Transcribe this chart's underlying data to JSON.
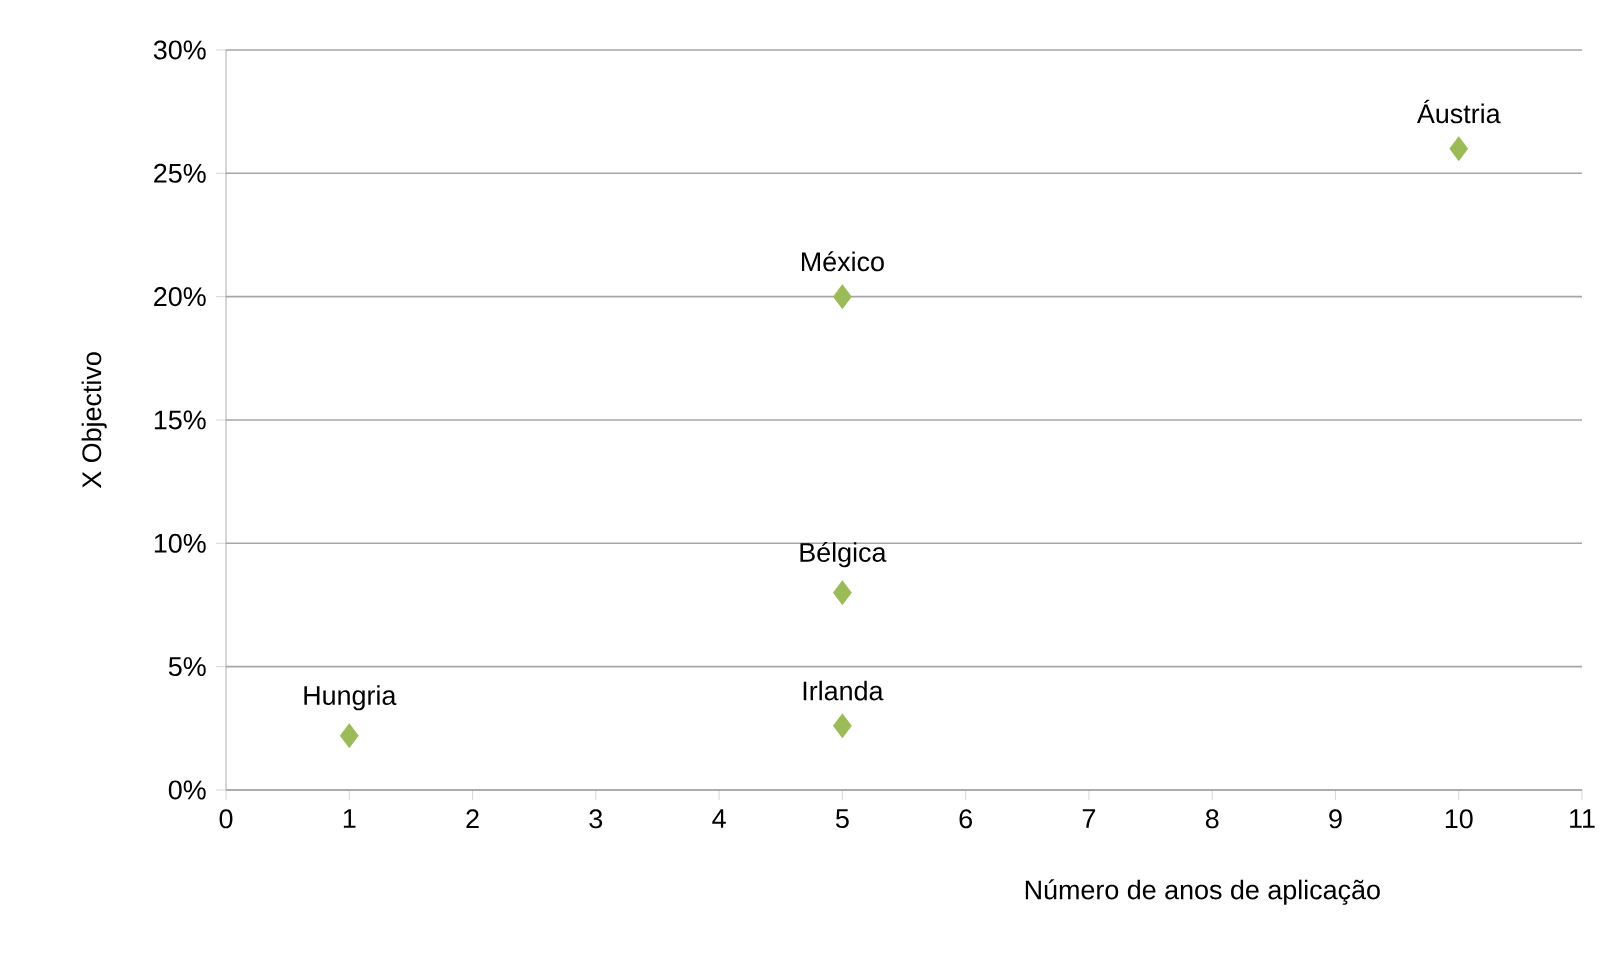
{
  "chart_data": {
    "type": "scatter",
    "xlabel": "Número de anos de aplicação",
    "ylabel": "X Objectivo",
    "x": [
      1,
      5,
      5,
      5,
      10
    ],
    "series": [
      {
        "color": "#9bbb59",
        "values": [
          2.2,
          2.6,
          8,
          20,
          26
        ]
      }
    ],
    "xlim": [
      0,
      11
    ],
    "xticks": [
      0,
      1,
      2,
      3,
      4,
      5,
      6,
      7,
      8,
      9,
      10,
      11
    ],
    "ylim": [
      0,
      30
    ],
    "yticks": [
      {
        "value": 0,
        "label": "0%"
      },
      {
        "value": 5,
        "label": "5%"
      },
      {
        "value": 10,
        "label": "10%"
      },
      {
        "value": 15,
        "label": "15%"
      },
      {
        "value": 20,
        "label": "20%"
      },
      {
        "value": 25,
        "label": "25%"
      },
      {
        "value": 30,
        "label": "30%"
      }
    ],
    "grid": "y",
    "marker": "diamond",
    "annotations": [
      {
        "text": "Hungria",
        "x": 1,
        "y": 2.2
      },
      {
        "text": "Irlanda",
        "x": 5,
        "y": 2.6
      },
      {
        "text": "Bélgica",
        "x": 5,
        "y": 8
      },
      {
        "text": "México",
        "x": 5,
        "y": 20
      },
      {
        "text": "Áustria",
        "x": 10,
        "y": 26
      }
    ]
  }
}
